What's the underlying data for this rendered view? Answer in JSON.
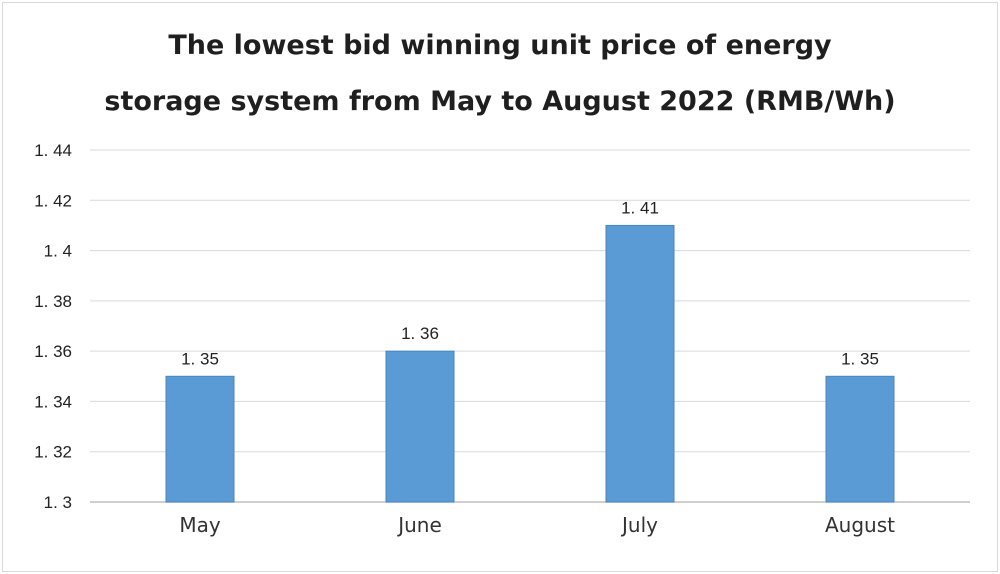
{
  "chart_data": {
    "type": "bar",
    "title_lines": [
      "The lowest bid winning unit price of energy",
      "storage system from May to August 2022 (RMB/Wh)"
    ],
    "categories": [
      "May",
      "June",
      "July",
      "August"
    ],
    "values": [
      1.35,
      1.36,
      1.41,
      1.35
    ],
    "data_labels": [
      "1. 35",
      "1. 36",
      "1. 41",
      "1. 35"
    ],
    "yticks": [
      1.3,
      1.32,
      1.34,
      1.36,
      1.38,
      1.4,
      1.42,
      1.44
    ],
    "ytick_labels": [
      "1. 3",
      "1. 32",
      "1. 34",
      "1. 36",
      "1. 38",
      "1. 4",
      "1. 42",
      "1. 44"
    ],
    "ylim": [
      1.3,
      1.44
    ],
    "grid": true,
    "legend": "none",
    "colors": {
      "bar": "#5b9bd5",
      "bar_edge": "#4a86c0",
      "grid": "#d9d9d9",
      "axis": "#bfbfbf"
    }
  }
}
